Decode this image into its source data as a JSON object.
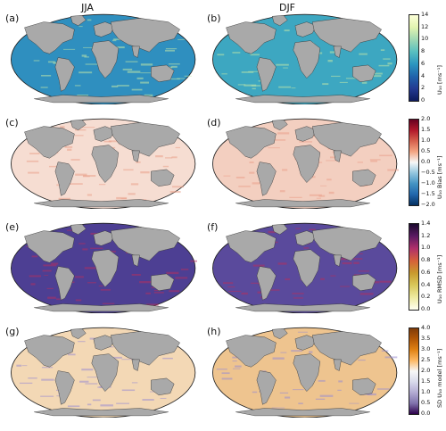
{
  "columns": [
    "JJA",
    "DJF"
  ],
  "rows": [
    {
      "labels": [
        "(a)",
        "(b)"
      ],
      "colorbar": {
        "ticks": [
          "14",
          "12",
          "10",
          "8",
          "6",
          "4",
          "2",
          "0"
        ],
        "label": "U₁₀ [ms⁻¹]",
        "colors": [
          "#fcffd8",
          "#e2f4b0",
          "#9fd8b4",
          "#58bfc0",
          "#2c96c0",
          "#2064ac",
          "#243a92",
          "#0d1a5c"
        ]
      },
      "ocean_colors": [
        "#2f8fbf",
        "#3da7c1"
      ],
      "accent": "#bfe6a8"
    },
    {
      "labels": [
        "(c)",
        "(d)"
      ],
      "colorbar": {
        "ticks": [
          "2.0",
          "1.5",
          "1.0",
          "0.5",
          "0.0",
          "−0.5",
          "−1.0",
          "−1.5",
          "−2.0"
        ],
        "label": "U₁₀ Bias [ms⁻¹]",
        "colors": [
          "#67001f",
          "#b2182b",
          "#d6604d",
          "#f4a582",
          "#f7f7f7",
          "#92c5de",
          "#4393c3",
          "#2166ac",
          "#053061"
        ]
      },
      "ocean_colors": [
        "#f6ddd2",
        "#f3cfc0"
      ],
      "accent": "#e9a08a"
    },
    {
      "labels": [
        "(e)",
        "(f)"
      ],
      "colorbar": {
        "ticks": [
          "1.4",
          "1.2",
          "1.0",
          "0.8",
          "0.6",
          "0.4",
          "0.2",
          "0.0"
        ],
        "label": "U₁₀ RMSD [ms⁻¹]",
        "colors": [
          "#1a0a2e",
          "#5b1a62",
          "#b0306a",
          "#d6603a",
          "#c99a2e",
          "#d9c85a",
          "#eeeaa0",
          "#fffff0"
        ]
      },
      "ocean_colors": [
        "#4d3f93",
        "#5a4a9c"
      ],
      "accent": "#b03060"
    },
    {
      "labels": [
        "(g)",
        "(h)"
      ],
      "colorbar": {
        "ticks": [
          "4.0",
          "3.5",
          "3.0",
          "2.5",
          "2.0",
          "1.5",
          "1.0",
          "0.5",
          "0.0"
        ],
        "label": "SD U₁₀ model [ms⁻¹]",
        "colors": [
          "#7f3b08",
          "#b35806",
          "#e08214",
          "#fdb863",
          "#f7f7f7",
          "#d8daeb",
          "#b2abd2",
          "#8073ac",
          "#2d004b"
        ]
      },
      "ocean_colors": [
        "#f3d8b5",
        "#eec48f"
      ],
      "accent": "#9a8ed0"
    }
  ]
}
